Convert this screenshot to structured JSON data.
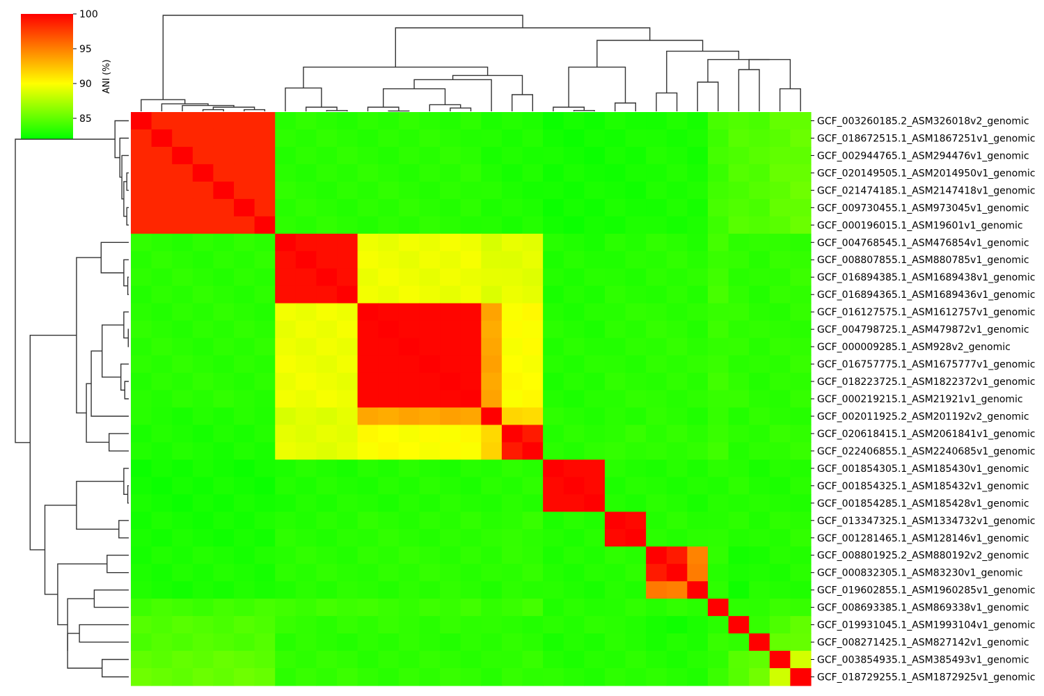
{
  "chart_data": {
    "type": "heatmap",
    "title": "",
    "colorbar": {
      "label": "ANI (%)",
      "ticks": [
        85,
        90,
        95,
        100
      ],
      "range": [
        82,
        100
      ],
      "colors": [
        "#00ff00",
        "#ffff00",
        "#ff0000"
      ]
    },
    "dendrograms": [
      "top",
      "left"
    ],
    "rows": [
      "GCF_003260185.2_ASM326018v2_genomic",
      "GCF_018672515.1_ASM1867251v1_genomic",
      "GCF_002944765.1_ASM294476v1_genomic",
      "GCF_020149505.1_ASM2014950v1_genomic",
      "GCF_021474185.1_ASM2147418v1_genomic",
      "GCF_009730455.1_ASM973045v1_genomic",
      "GCF_000196015.1_ASM19601v1_genomic",
      "GCF_004768545.1_ASM476854v1_genomic",
      "GCF_008807855.1_ASM880785v1_genomic",
      "GCF_016894385.1_ASM1689438v1_genomic",
      "GCF_016894365.1_ASM1689436v1_genomic",
      "GCF_016127575.1_ASM1612757v1_genomic",
      "GCF_004798725.1_ASM479872v1_genomic",
      "GCF_000009285.1_ASM928v2_genomic",
      "GCF_016757775.1_ASM1675777v1_genomic",
      "GCF_018223725.1_ASM1822372v1_genomic",
      "GCF_000219215.1_ASM21921v1_genomic",
      "GCF_002011925.2_ASM201192v2_genomic",
      "GCF_020618415.1_ASM2061841v1_genomic",
      "GCF_022406855.1_ASM2240685v1_genomic",
      "GCF_001854305.1_ASM185430v1_genomic",
      "GCF_001854325.1_ASM185432v1_genomic",
      "GCF_001854285.1_ASM185428v1_genomic",
      "GCF_013347325.1_ASM1334732v1_genomic",
      "GCF_001281465.1_ASM128146v1_genomic",
      "GCF_008801925.2_ASM880192v2_genomic",
      "GCF_000832305.1_ASM83230v1_genomic",
      "GCF_019602855.1_ASM1960285v1_genomic",
      "GCF_008693385.1_ASM869338v1_genomic",
      "GCF_019931045.1_ASM1993104v1_genomic",
      "GCF_008271425.1_ASM827142v1_genomic",
      "GCF_003854935.1_ASM385493v1_genomic",
      "GCF_018729255.1_ASM1872925v1_genomic"
    ],
    "group_index": [
      0,
      0,
      0,
      0,
      0,
      0,
      0,
      1,
      1,
      1,
      1,
      2,
      2,
      2,
      2,
      2,
      2,
      3,
      4,
      4,
      5,
      5,
      5,
      6,
      6,
      7,
      7,
      8,
      9,
      10,
      11,
      12,
      13
    ],
    "group_ani": [
      [
        98.5,
        83.3,
        83.3,
        83.0,
        82.9,
        82.6,
        82.7,
        82.9,
        82.8,
        84.0,
        84.5,
        84.5,
        85.0,
        85.2
      ],
      [
        83.3,
        99.5,
        89.5,
        89.0,
        89.2,
        83.0,
        83.2,
        83.3,
        83.2,
        84.0,
        83.5,
        83.3,
        83.5,
        83.6
      ],
      [
        83.3,
        89.5,
        99.8,
        93.5,
        90.0,
        83.1,
        83.3,
        83.4,
        83.3,
        83.8,
        83.5,
        83.3,
        83.4,
        83.5
      ],
      [
        83.0,
        89.0,
        93.5,
        100,
        91.5,
        83.2,
        83.2,
        83.3,
        83.2,
        83.5,
        83.2,
        83.3,
        83.3,
        83.4
      ],
      [
        82.9,
        89.2,
        90.0,
        91.5,
        99.0,
        83.2,
        83.6,
        83.4,
        83.3,
        84.0,
        83.3,
        83.3,
        83.5,
        83.5
      ],
      [
        82.6,
        83.0,
        83.1,
        83.2,
        83.2,
        99.7,
        83.0,
        83.1,
        83.0,
        83.1,
        83.2,
        83.0,
        83.1,
        83.2
      ],
      [
        82.7,
        83.2,
        83.3,
        83.2,
        83.6,
        83.0,
        99.7,
        83.2,
        83.1,
        83.4,
        83.3,
        83.1,
        83.2,
        83.3
      ],
      [
        82.9,
        83.3,
        83.4,
        83.3,
        83.4,
        83.1,
        83.2,
        99.0,
        95.0,
        83.3,
        82.6,
        83.0,
        83.1,
        83.2
      ],
      [
        82.8,
        83.2,
        83.3,
        83.2,
        83.3,
        83.0,
        83.1,
        95.0,
        99.0,
        83.3,
        82.6,
        83.0,
        83.1,
        83.2
      ],
      [
        84.0,
        84.0,
        83.8,
        83.5,
        84.0,
        83.1,
        83.4,
        83.3,
        83.3,
        100,
        83.3,
        83.5,
        83.6,
        83.7
      ],
      [
        84.5,
        83.5,
        83.5,
        83.2,
        83.3,
        83.2,
        83.3,
        82.6,
        82.6,
        83.3,
        100,
        83.5,
        84.5,
        84.8
      ],
      [
        84.5,
        83.3,
        83.3,
        83.3,
        83.3,
        83.0,
        83.1,
        83.0,
        83.0,
        83.5,
        83.5,
        100,
        85.0,
        85.3
      ],
      [
        85.0,
        83.5,
        83.4,
        83.3,
        83.5,
        83.1,
        83.2,
        83.1,
        83.1,
        83.6,
        84.5,
        85.0,
        100,
        88.5
      ],
      [
        85.2,
        83.6,
        83.5,
        83.4,
        83.5,
        83.2,
        83.3,
        83.2,
        83.2,
        83.7,
        84.8,
        85.3,
        88.5,
        100
      ]
    ],
    "xlabel": "",
    "ylabel": ""
  }
}
